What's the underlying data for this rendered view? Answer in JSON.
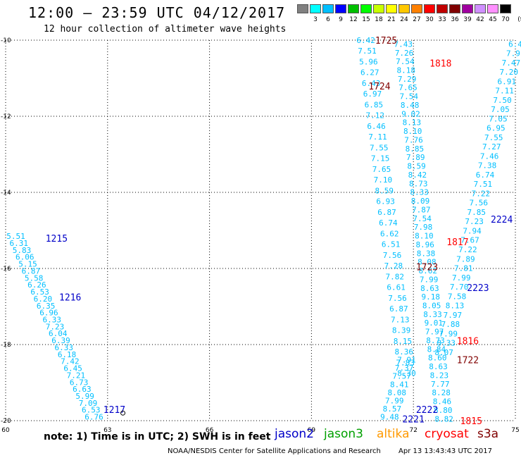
{
  "title": "12:00 – 23:59 UTC 04/12/2017",
  "subtitle": "12 hour collection of altimeter wave heights",
  "legend": {
    "unit": "(ft)",
    "colors": [
      "#808080",
      "#00ffff",
      "#00bfff",
      "#0000ff",
      "#00c000",
      "#00ff00",
      "#c8ff00",
      "#ffff00",
      "#ffc800",
      "#ff8000",
      "#ff0000",
      "#c00000",
      "#800000",
      "#a000a0",
      "#d090ff",
      "#ff90ff",
      "#000000"
    ],
    "labels": [
      "3",
      "6",
      "9",
      "12",
      "15",
      "18",
      "21",
      "24",
      "27",
      "30",
      "33",
      "36",
      "39",
      "42",
      "45",
      "70"
    ]
  },
  "chart_data": {
    "type": "map",
    "lon_range": [
      60,
      75
    ],
    "lat_range": [
      -20,
      -10
    ],
    "lon_ticks": [
      "60",
      "63",
      "66",
      "69",
      "72",
      "75"
    ],
    "lat_ticks": [
      "-10",
      "-12",
      "-14",
      "-16",
      "-18",
      "-20"
    ],
    "gridlines": "dotted",
    "tracks": [
      {
        "id": "jason2_1215_1217",
        "lat_start": -15.15,
        "lat_end": -19.9,
        "lon_start": 60.3,
        "lon_end": 62.6,
        "color": "#00bfff",
        "values": [
          "5.51",
          "6.31",
          "5.83",
          "6.06",
          "5.15",
          "6.87",
          "5.58",
          "6.26",
          "6.53",
          "6.20",
          "6.35",
          "6.96",
          "6.33",
          "7.23",
          "6.04",
          "6.39",
          "6.33",
          "6.18",
          "7.42",
          "6.45",
          "7.21",
          "6.73",
          "6.63",
          "5.99",
          "7.09",
          "6.53",
          "6.76"
        ]
      },
      {
        "id": "cryosat_1725_1722",
        "lat_start": -10.0,
        "lat_end": -18.75,
        "lon_start": 70.6,
        "lon_end": 71.8,
        "color": "#00bfff",
        "values": [
          "6.42",
          "7.51",
          "5.96",
          "6.27",
          "6.43",
          "6.97",
          "6.85",
          "7.12",
          "6.46",
          "7.11",
          "7.55",
          "7.15",
          "7.65",
          "7.10",
          "8.59",
          "6.93",
          "6.87",
          "6.74",
          "6.62",
          "6.51",
          "7.56",
          "7.28",
          "7.82",
          "6.61",
          "7.56",
          "6.87",
          "7.13",
          "8.39",
          "8.15",
          "8.36",
          "7.83",
          "8.30"
        ]
      },
      {
        "id": "jason2_2221_2222",
        "lat_start": -18.4,
        "lat_end": -19.9,
        "lon_start": 71.8,
        "lon_end": 71.3,
        "color": "#00bfff",
        "values": [
          "7.91",
          "7.37",
          "7.57",
          "8.41",
          "8.08",
          "7.99",
          "8.57",
          "9.48"
        ]
      },
      {
        "id": "cryosat_1818_1815",
        "lat_start": -10.1,
        "lat_end": -19.95,
        "lon_start": 71.7,
        "lon_end": 72.9,
        "color": "#00bfff",
        "values": [
          "7.43",
          "7.26",
          "7.54",
          "8.18",
          "7.29",
          "7.65",
          "7.54",
          "8.48",
          "9.02",
          "8.13",
          "8.10",
          "7.76",
          "8.85",
          "7.89",
          "8.59",
          "8.42",
          "8.73",
          "8.33",
          "8.09",
          "7.87",
          "7.54",
          "7.98",
          "8.10",
          "8.96",
          "8.38",
          "8.08",
          "8.62",
          "7.99",
          "8.63",
          "9.18",
          "8.05",
          "8.33",
          "9.01",
          "7.97",
          "8.73",
          "8.84",
          "8.60",
          "8.63",
          "8.23",
          "7.77",
          "8.28",
          "8.46",
          "8.80",
          "8.82"
        ]
      },
      {
        "id": "jason2_2224_2223",
        "lat_start": -10.1,
        "lat_end": -18.2,
        "lon_start": 75.0,
        "lon_end": 72.9,
        "color": "#00bfff",
        "values": [
          "6.4",
          "7.9",
          "7.47",
          "7.20",
          "6.91",
          "7.11",
          "7.50",
          "7.05",
          "7.05",
          "6.95",
          "7.55",
          "7.27",
          "7.46",
          "7.38",
          "6.74",
          "7.51",
          "7.22",
          "7.56",
          "7.85",
          "7.23",
          "7.94",
          "7.67",
          "7.22",
          "7.89",
          "7.81",
          "7.99",
          "7.70",
          "7.58",
          "8.13",
          "7.97",
          "7.88",
          "7.99",
          "8.33",
          "8.07"
        ]
      }
    ],
    "pass_labels": [
      {
        "text": "1215",
        "lon": 61.5,
        "lat": -15.2,
        "color": "#0000c8"
      },
      {
        "text": "1216",
        "lon": 61.9,
        "lat": -16.75,
        "color": "#0000c8"
      },
      {
        "text": "1217",
        "lon": 63.2,
        "lat": -19.7,
        "color": "#0000c8"
      },
      {
        "text": "1725",
        "lon": 71.2,
        "lat": -10.0,
        "color": "#800000"
      },
      {
        "text": "1724",
        "lon": 71.0,
        "lat": -11.2,
        "color": "#800000"
      },
      {
        "text": "1723",
        "lon": 72.4,
        "lat": -15.95,
        "color": "#800000"
      },
      {
        "text": "1722",
        "lon": 73.6,
        "lat": -18.4,
        "color": "#800000"
      },
      {
        "text": "1818",
        "lon": 72.8,
        "lat": -10.6,
        "color": "#ff0000"
      },
      {
        "text": "1817",
        "lon": 73.3,
        "lat": -15.3,
        "color": "#ff0000"
      },
      {
        "text": "1816",
        "lon": 73.6,
        "lat": -17.9,
        "color": "#ff0000"
      },
      {
        "text": "1815",
        "lon": 73.7,
        "lat": -20.0,
        "color": "#ff0000"
      },
      {
        "text": "2224",
        "lon": 74.6,
        "lat": -14.7,
        "color": "#0000c8"
      },
      {
        "text": "2223",
        "lon": 73.9,
        "lat": -16.5,
        "color": "#0000c8"
      },
      {
        "text": "2222",
        "lon": 72.4,
        "lat": -19.7,
        "color": "#0000c8"
      },
      {
        "text": "2221",
        "lon": 72.0,
        "lat": -19.95,
        "color": "#0000c8"
      }
    ]
  },
  "footer": {
    "note": "note:  1) Time is in UTC;  2) SWH is in feet",
    "satellites": [
      {
        "name": "jason2",
        "color": "#0000c8"
      },
      {
        "name": "jason3",
        "color": "#00a000"
      },
      {
        "name": "altika",
        "color": "#ff9900"
      },
      {
        "name": "cryosat",
        "color": "#ff0000"
      },
      {
        "name": "s3a",
        "color": "#800000"
      }
    ],
    "credit": "NOAA/NESDIS Center for Satellite Applications and Research",
    "timestamp": "Apr 13 13:43:43 UTC 2017"
  }
}
